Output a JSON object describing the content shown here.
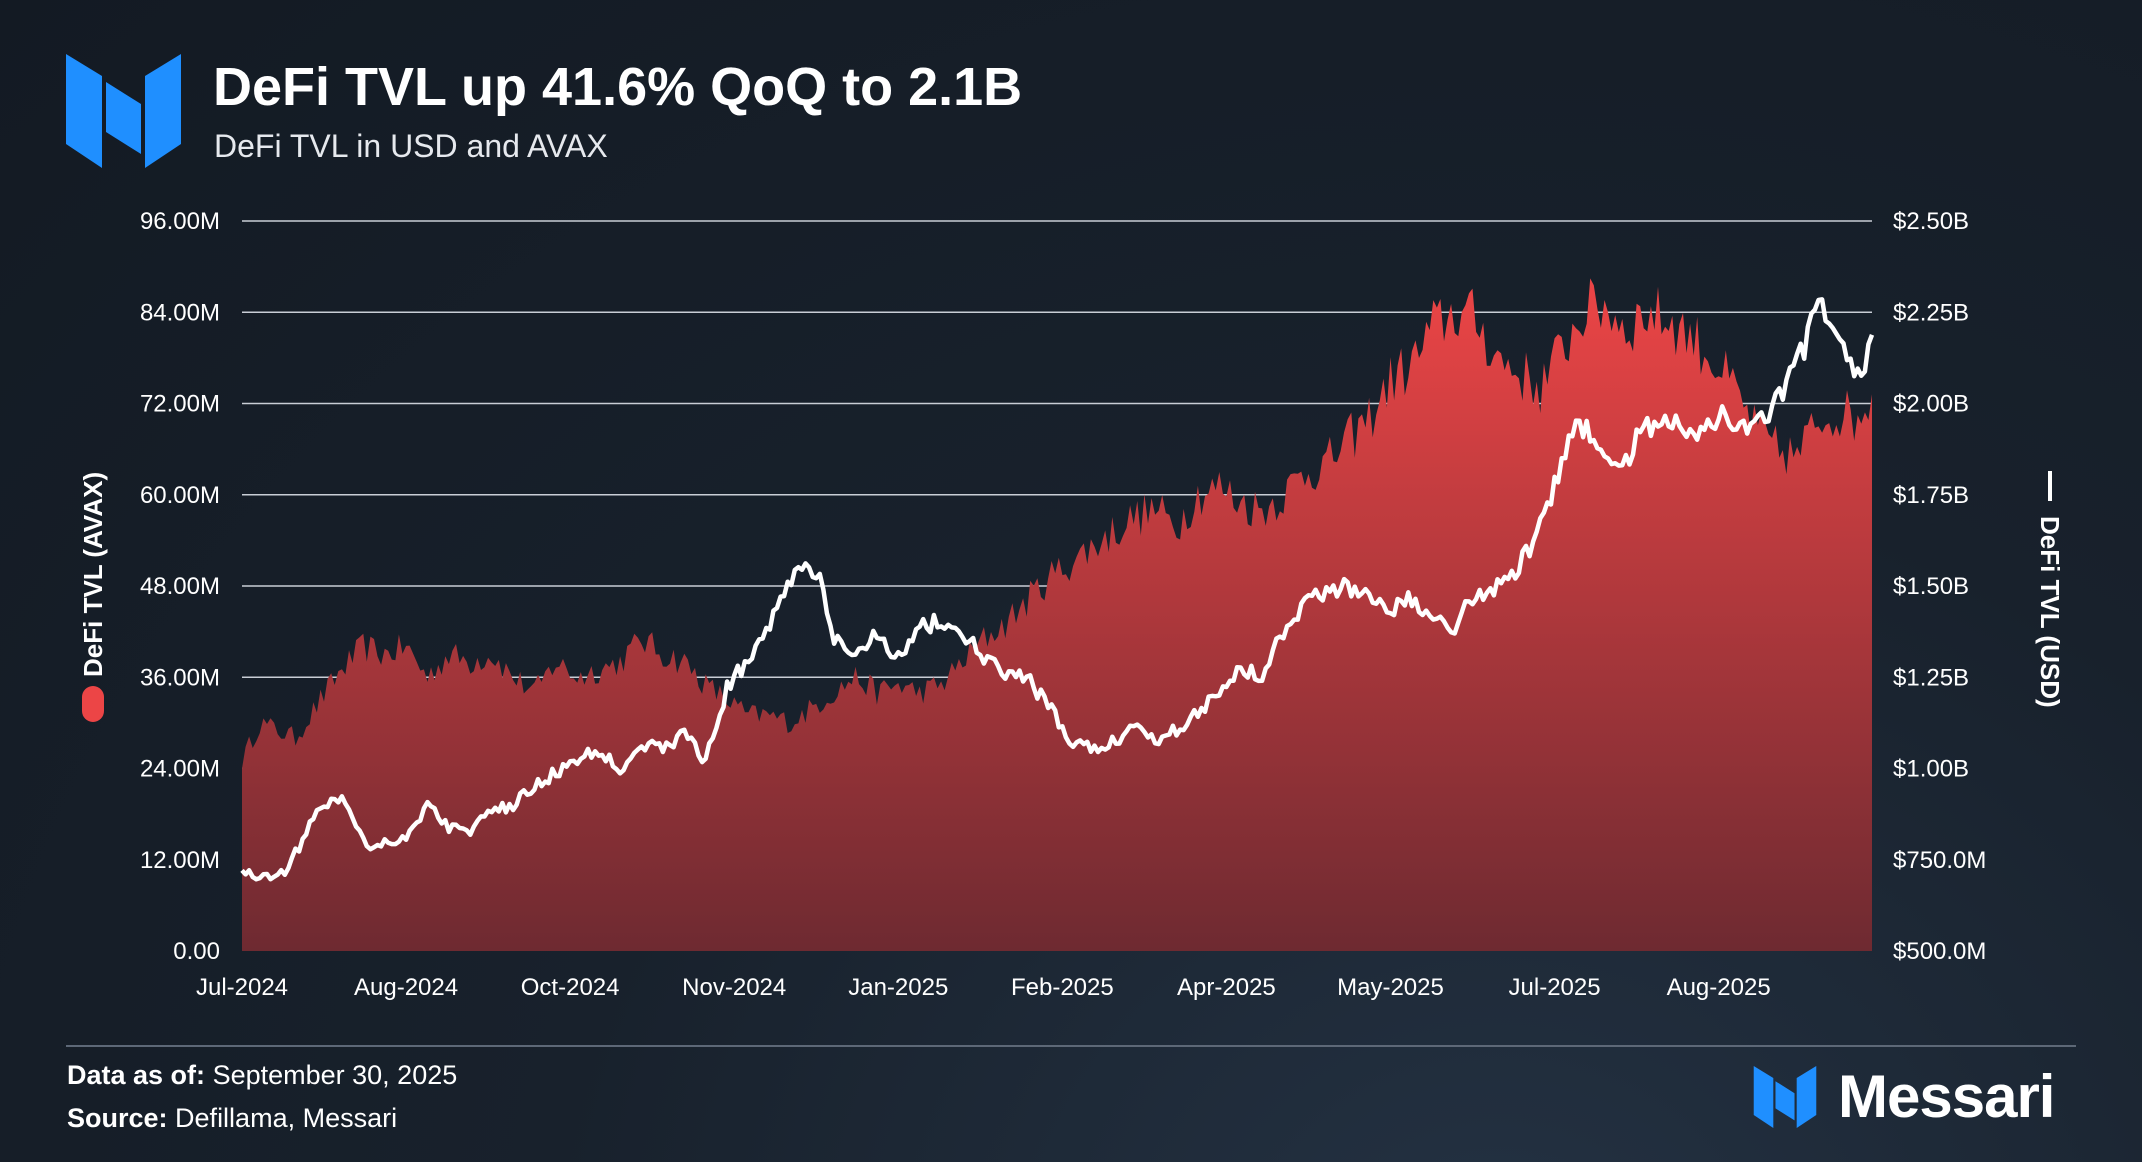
{
  "header": {
    "title": "DeFi TVL up 41.6% QoQ to 2.1B",
    "subtitle": "DeFi TVL in USD and AVAX"
  },
  "footer": {
    "date_label": "Data as of:",
    "date_value": "September 30, 2025",
    "source_label": "Source:",
    "source_value": "Defillama, Messari",
    "brand": "Messari"
  },
  "colors": {
    "avax_area_top": "#ec4546",
    "avax_area_bottom": "#6e2a31",
    "usd_line": "#ffffff",
    "brand_blue": "#1f8fff",
    "grid": "#c9ced6"
  },
  "chart_data": {
    "type": "area",
    "x_labels": [
      "Jul-2024",
      "Aug-2024",
      "Oct-2024",
      "Nov-2024",
      "Jan-2025",
      "Feb-2025",
      "Apr-2025",
      "May-2025",
      "Jul-2025",
      "Aug-2025"
    ],
    "x_label_positions": [
      0,
      46,
      92,
      138,
      184,
      230,
      276,
      322,
      368,
      414
    ],
    "x_count": 458,
    "ylabel_left": "DeFi TVL (AVAX)",
    "ylabel_right": "DeFi TVL (USD)",
    "ylim_left": [
      0,
      96000000
    ],
    "ylim_right": [
      500000000,
      2500000000
    ],
    "yticks_left": [
      "0.00",
      "12.00M",
      "24.00M",
      "36.00M",
      "48.00M",
      "60.00M",
      "72.00M",
      "84.00M",
      "96.00M"
    ],
    "yticks_right": [
      "$500.0M",
      "$750.0M",
      "$1.00B",
      "$1.25B",
      "$1.50B",
      "$1.75B",
      "$2.00B",
      "$2.25B",
      "$2.50B"
    ],
    "grid": true,
    "series": [
      {
        "name": "DeFi TVL (AVAX)",
        "kind": "area",
        "axis": "left",
        "keypoints": [
          [
            0,
            25000000
          ],
          [
            5,
            30000000
          ],
          [
            10,
            29000000
          ],
          [
            15,
            28000000
          ],
          [
            22,
            33000000
          ],
          [
            28,
            37000000
          ],
          [
            34,
            40000000
          ],
          [
            40,
            39000000
          ],
          [
            46,
            40000000
          ],
          [
            52,
            36000000
          ],
          [
            58,
            39000000
          ],
          [
            64,
            38000000
          ],
          [
            70,
            39000000
          ],
          [
            76,
            36000000
          ],
          [
            82,
            34000000
          ],
          [
            88,
            38000000
          ],
          [
            94,
            36000000
          ],
          [
            100,
            37000000
          ],
          [
            106,
            38000000
          ],
          [
            112,
            41000000
          ],
          [
            118,
            39000000
          ],
          [
            124,
            38000000
          ],
          [
            130,
            35000000
          ],
          [
            136,
            33000000
          ],
          [
            142,
            31000000
          ],
          [
            148,
            31000000
          ],
          [
            154,
            30000000
          ],
          [
            160,
            32000000
          ],
          [
            166,
            34000000
          ],
          [
            172,
            36000000
          ],
          [
            178,
            34000000
          ],
          [
            184,
            35000000
          ],
          [
            190,
            34000000
          ],
          [
            196,
            35000000
          ],
          [
            202,
            38000000
          ],
          [
            208,
            41000000
          ],
          [
            214,
            43000000
          ],
          [
            220,
            46000000
          ],
          [
            226,
            49000000
          ],
          [
            232,
            51000000
          ],
          [
            238,
            53000000
          ],
          [
            244,
            55000000
          ],
          [
            250,
            57000000
          ],
          [
            256,
            58000000
          ],
          [
            262,
            56000000
          ],
          [
            268,
            60000000
          ],
          [
            274,
            61000000
          ],
          [
            280,
            59000000
          ],
          [
            286,
            58000000
          ],
          [
            292,
            60000000
          ],
          [
            298,
            63000000
          ],
          [
            304,
            64000000
          ],
          [
            310,
            67000000
          ],
          [
            316,
            70000000
          ],
          [
            322,
            75000000
          ],
          [
            328,
            77000000
          ],
          [
            334,
            82000000
          ],
          [
            340,
            84000000
          ],
          [
            346,
            83000000
          ],
          [
            352,
            78000000
          ],
          [
            358,
            76000000
          ],
          [
            364,
            74000000
          ],
          [
            370,
            79000000
          ],
          [
            376,
            84000000
          ],
          [
            382,
            85000000
          ],
          [
            388,
            82000000
          ],
          [
            394,
            84000000
          ],
          [
            400,
            83000000
          ],
          [
            406,
            81000000
          ],
          [
            412,
            78000000
          ],
          [
            418,
            74000000
          ],
          [
            424,
            69000000
          ],
          [
            430,
            66000000
          ],
          [
            436,
            65000000
          ],
          [
            442,
            70000000
          ],
          [
            448,
            71000000
          ],
          [
            452,
            70000000
          ],
          [
            457,
            73000000
          ]
        ]
      },
      {
        "name": "DeFi TVL (USD)",
        "kind": "line",
        "axis": "right",
        "keypoints": [
          [
            0,
            720000000
          ],
          [
            6,
            700000000
          ],
          [
            12,
            720000000
          ],
          [
            18,
            820000000
          ],
          [
            22,
            900000000
          ],
          [
            28,
            920000000
          ],
          [
            32,
            850000000
          ],
          [
            36,
            780000000
          ],
          [
            40,
            800000000
          ],
          [
            46,
            810000000
          ],
          [
            52,
            900000000
          ],
          [
            58,
            840000000
          ],
          [
            64,
            830000000
          ],
          [
            70,
            880000000
          ],
          [
            76,
            900000000
          ],
          [
            82,
            950000000
          ],
          [
            88,
            990000000
          ],
          [
            94,
            1020000000
          ],
          [
            100,
            1050000000
          ],
          [
            106,
            1000000000
          ],
          [
            112,
            1070000000
          ],
          [
            118,
            1050000000
          ],
          [
            124,
            1100000000
          ],
          [
            130,
            1020000000
          ],
          [
            136,
            1220000000
          ],
          [
            142,
            1300000000
          ],
          [
            148,
            1400000000
          ],
          [
            154,
            1520000000
          ],
          [
            158,
            1570000000
          ],
          [
            162,
            1510000000
          ],
          [
            166,
            1350000000
          ],
          [
            172,
            1300000000
          ],
          [
            178,
            1380000000
          ],
          [
            184,
            1300000000
          ],
          [
            190,
            1390000000
          ],
          [
            196,
            1400000000
          ],
          [
            202,
            1370000000
          ],
          [
            208,
            1300000000
          ],
          [
            214,
            1260000000
          ],
          [
            220,
            1250000000
          ],
          [
            226,
            1170000000
          ],
          [
            232,
            1080000000
          ],
          [
            238,
            1050000000
          ],
          [
            244,
            1070000000
          ],
          [
            250,
            1120000000
          ],
          [
            256,
            1080000000
          ],
          [
            262,
            1110000000
          ],
          [
            268,
            1150000000
          ],
          [
            274,
            1220000000
          ],
          [
            280,
            1270000000
          ],
          [
            286,
            1260000000
          ],
          [
            292,
            1380000000
          ],
          [
            298,
            1460000000
          ],
          [
            304,
            1480000000
          ],
          [
            310,
            1500000000
          ],
          [
            316,
            1480000000
          ],
          [
            322,
            1440000000
          ],
          [
            328,
            1460000000
          ],
          [
            334,
            1430000000
          ],
          [
            340,
            1390000000
          ],
          [
            346,
            1480000000
          ],
          [
            352,
            1500000000
          ],
          [
            358,
            1550000000
          ],
          [
            364,
            1670000000
          ],
          [
            370,
            1820000000
          ],
          [
            374,
            1960000000
          ],
          [
            380,
            1900000000
          ],
          [
            386,
            1800000000
          ],
          [
            392,
            1930000000
          ],
          [
            398,
            1960000000
          ],
          [
            404,
            1940000000
          ],
          [
            410,
            1920000000
          ],
          [
            416,
            1970000000
          ],
          [
            422,
            1940000000
          ],
          [
            428,
            1950000000
          ],
          [
            434,
            2090000000
          ],
          [
            438,
            2140000000
          ],
          [
            442,
            2280000000
          ],
          [
            446,
            2240000000
          ],
          [
            450,
            2130000000
          ],
          [
            454,
            2040000000
          ],
          [
            457,
            2170000000
          ]
        ]
      }
    ]
  }
}
